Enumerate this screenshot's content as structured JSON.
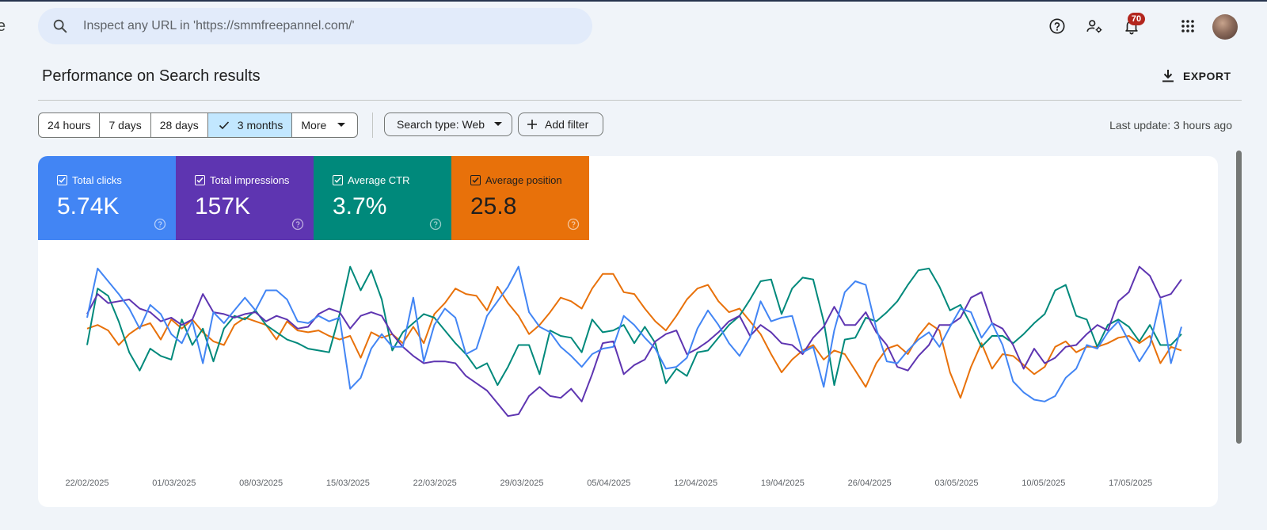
{
  "edge_text": "e",
  "search": {
    "placeholder": "Inspect any URL in 'https://smmfreepannel.com/'"
  },
  "toolbar": {
    "icons": [
      "help-icon",
      "manage-users-icon",
      "notifications-icon",
      "apps-grid-icon",
      "avatar"
    ],
    "notification_count": "70"
  },
  "header": {
    "title": "Performance on Search results",
    "export_label": "EXPORT"
  },
  "filters": {
    "date_ranges": [
      "24 hours",
      "7 days",
      "28 days",
      "3 months",
      "More"
    ],
    "selected_range": "3 months",
    "search_type": "Search type: Web",
    "add_filter": "Add filter",
    "last_update": "Last update: 3 hours ago"
  },
  "metrics": [
    {
      "label": "Total clicks",
      "value": "5.74K",
      "color": "#4285f4",
      "checked": true
    },
    {
      "label": "Total impressions",
      "value": "157K",
      "color": "#5e35b1",
      "checked": true
    },
    {
      "label": "Average CTR",
      "value": "3.7%",
      "color": "#00897b",
      "checked": true
    },
    {
      "label": "Average position",
      "value": "25.8",
      "color": "#e8710a",
      "checked": true
    }
  ],
  "chart_data": {
    "type": "line",
    "x_tick_labels": [
      "22/02/2025",
      "01/03/2025",
      "08/03/2025",
      "15/03/2025",
      "22/03/2025",
      "29/03/2025",
      "05/04/2025",
      "12/04/2025",
      "19/04/2025",
      "26/04/2025",
      "03/05/2025",
      "10/05/2025",
      "17/05/2025"
    ],
    "grid": false,
    "series": [
      {
        "name": "Total clicks",
        "color": "#4285f4",
        "values": [
          0.7,
          0.97,
          0.9,
          0.83,
          0.75,
          0.64,
          0.77,
          0.72,
          0.61,
          0.56,
          0.68,
          0.45,
          0.73,
          0.67,
          0.74,
          0.81,
          0.74,
          0.85,
          0.85,
          0.8,
          0.68,
          0.67,
          0.71,
          0.68,
          0.7,
          0.31,
          0.37,
          0.53,
          0.61,
          0.54,
          0.54,
          0.81,
          0.46,
          0.66,
          0.75,
          0.7,
          0.5,
          0.53,
          0.71,
          0.79,
          0.87,
          0.98,
          0.73,
          0.65,
          0.62,
          0.54,
          0.49,
          0.43,
          0.5,
          0.53,
          0.54,
          0.71,
          0.66,
          0.59,
          0.53,
          0.42,
          0.43,
          0.48,
          0.64,
          0.74,
          0.66,
          0.56,
          0.49,
          0.59,
          0.79,
          0.68,
          0.7,
          0.71,
          0.51,
          0.54,
          0.32,
          0.63,
          0.84,
          0.9,
          0.88,
          0.64,
          0.46,
          0.45,
          0.52,
          0.58,
          0.62,
          0.54,
          0.65,
          0.75,
          0.73,
          0.59,
          0.67,
          0.55,
          0.35,
          0.29,
          0.25,
          0.24,
          0.27,
          0.37,
          0.42,
          0.55,
          0.53,
          0.62,
          0.68,
          0.57,
          0.46,
          0.55,
          0.8,
          0.45,
          0.65
        ]
      },
      {
        "name": "Total impressions",
        "color": "#5e35b1",
        "values": [
          0.72,
          0.83,
          0.78,
          0.79,
          0.8,
          0.75,
          0.73,
          0.68,
          0.7,
          0.66,
          0.69,
          0.83,
          0.73,
          0.72,
          0.7,
          0.72,
          0.73,
          0.68,
          0.71,
          0.69,
          0.64,
          0.65,
          0.72,
          0.75,
          0.73,
          0.64,
          0.71,
          0.73,
          0.71,
          0.61,
          0.54,
          0.49,
          0.45,
          0.46,
          0.46,
          0.45,
          0.38,
          0.34,
          0.3,
          0.23,
          0.16,
          0.17,
          0.27,
          0.32,
          0.27,
          0.26,
          0.31,
          0.24,
          0.39,
          0.56,
          0.57,
          0.39,
          0.44,
          0.47,
          0.57,
          0.61,
          0.63,
          0.5,
          0.53,
          0.57,
          0.62,
          0.68,
          0.71,
          0.6,
          0.66,
          0.62,
          0.56,
          0.55,
          0.5,
          0.59,
          0.65,
          0.76,
          0.66,
          0.66,
          0.73,
          0.62,
          0.55,
          0.43,
          0.41,
          0.49,
          0.55,
          0.66,
          0.66,
          0.7,
          0.81,
          0.84,
          0.67,
          0.64,
          0.55,
          0.42,
          0.53,
          0.45,
          0.48,
          0.54,
          0.55,
          0.61,
          0.66,
          0.63,
          0.79,
          0.84,
          0.98,
          0.93,
          0.81,
          0.83,
          0.91
        ]
      },
      {
        "name": "Average CTR",
        "color": "#00897b",
        "values": [
          0.55,
          0.86,
          0.82,
          0.68,
          0.51,
          0.41,
          0.53,
          0.49,
          0.47,
          0.69,
          0.55,
          0.64,
          0.46,
          0.64,
          0.71,
          0.69,
          0.74,
          0.66,
          0.62,
          0.58,
          0.56,
          0.53,
          0.52,
          0.51,
          0.72,
          0.98,
          0.85,
          0.96,
          0.8,
          0.52,
          0.62,
          0.67,
          0.72,
          0.7,
          0.63,
          0.56,
          0.5,
          0.42,
          0.45,
          0.33,
          0.43,
          0.55,
          0.55,
          0.39,
          0.63,
          0.6,
          0.59,
          0.51,
          0.69,
          0.62,
          0.63,
          0.66,
          0.56,
          0.65,
          0.56,
          0.34,
          0.42,
          0.38,
          0.51,
          0.52,
          0.59,
          0.66,
          0.71,
          0.8,
          0.9,
          0.91,
          0.72,
          0.86,
          0.92,
          0.91,
          0.68,
          0.33,
          0.58,
          0.59,
          0.7,
          0.68,
          0.73,
          0.79,
          0.88,
          0.96,
          0.97,
          0.87,
          0.74,
          0.77,
          0.66,
          0.54,
          0.6,
          0.6,
          0.56,
          0.61,
          0.67,
          0.72,
          0.85,
          0.88,
          0.71,
          0.69,
          0.54,
          0.66,
          0.69,
          0.65,
          0.57,
          0.66,
          0.55,
          0.55,
          0.61
        ]
      },
      {
        "name": "Average position",
        "color": "#e8710a",
        "values": [
          0.64,
          0.66,
          0.63,
          0.55,
          0.61,
          0.65,
          0.67,
          0.58,
          0.69,
          0.64,
          0.69,
          0.62,
          0.57,
          0.55,
          0.66,
          0.7,
          0.68,
          0.66,
          0.58,
          0.68,
          0.63,
          0.62,
          0.63,
          0.6,
          0.58,
          0.6,
          0.48,
          0.62,
          0.59,
          0.61,
          0.56,
          0.65,
          0.56,
          0.72,
          0.78,
          0.86,
          0.83,
          0.82,
          0.74,
          0.87,
          0.78,
          0.71,
          0.61,
          0.66,
          0.73,
          0.81,
          0.79,
          0.75,
          0.86,
          0.94,
          0.94,
          0.84,
          0.83,
          0.75,
          0.68,
          0.63,
          0.71,
          0.8,
          0.86,
          0.88,
          0.79,
          0.73,
          0.75,
          0.68,
          0.61,
          0.5,
          0.4,
          0.47,
          0.52,
          0.55,
          0.47,
          0.52,
          0.5,
          0.41,
          0.32,
          0.45,
          0.53,
          0.55,
          0.5,
          0.6,
          0.67,
          0.63,
          0.4,
          0.26,
          0.43,
          0.56,
          0.42,
          0.5,
          0.49,
          0.44,
          0.39,
          0.43,
          0.54,
          0.57,
          0.51,
          0.54,
          0.54,
          0.56,
          0.59,
          0.6,
          0.56,
          0.6,
          0.45,
          0.54,
          0.52
        ]
      }
    ]
  }
}
